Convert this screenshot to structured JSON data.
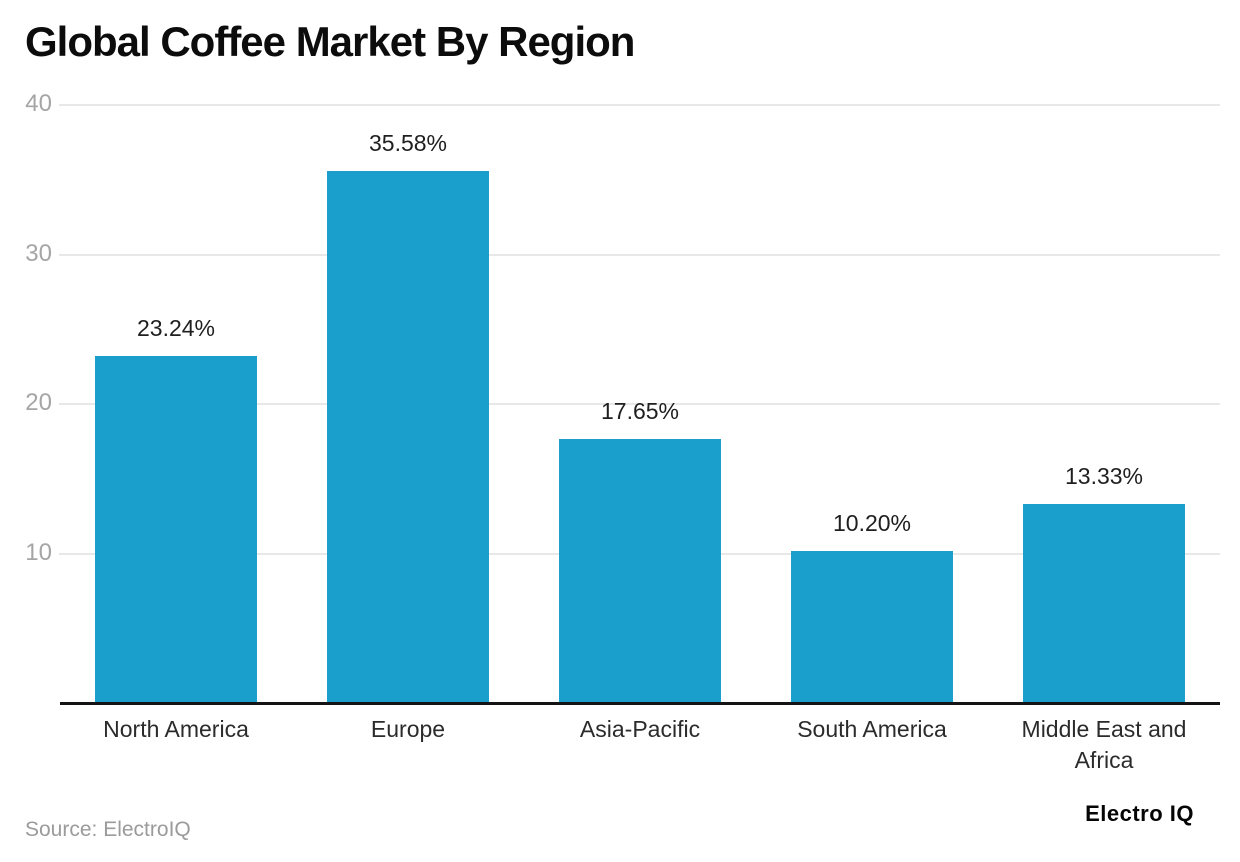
{
  "title": "Global Coffee Market By Region",
  "footer": {
    "source": "Source: ElectroIQ",
    "logo": "Electro IQ"
  },
  "colors": {
    "bar": "#1a9fcc",
    "axis_line": "#141414",
    "gridline": "#e8e8e8",
    "tick_label": "#a5a5a5",
    "category_label": "#2b2b2b",
    "value_label": "#1f1f1f",
    "title_text": "#0c0c0c",
    "source_text": "#9b9b9b",
    "background": "#ffffff"
  },
  "chart_data": {
    "type": "bar",
    "title": "Global Coffee Market By Region",
    "categories": [
      "North America",
      "Europe",
      "Asia-Pacific",
      "South America",
      "Middle East and Africa"
    ],
    "values": [
      23.24,
      35.58,
      17.65,
      10.2,
      13.33
    ],
    "value_labels": [
      "23.24%",
      "35.58%",
      "17.65%",
      "10.20%",
      "13.33%"
    ],
    "unit": "%",
    "xlabel": "",
    "ylabel": "",
    "yticks": [
      10,
      20,
      30,
      40
    ],
    "ylim": [
      0,
      40
    ],
    "grid": true,
    "legend": false,
    "bar_orientation": "vertical"
  }
}
